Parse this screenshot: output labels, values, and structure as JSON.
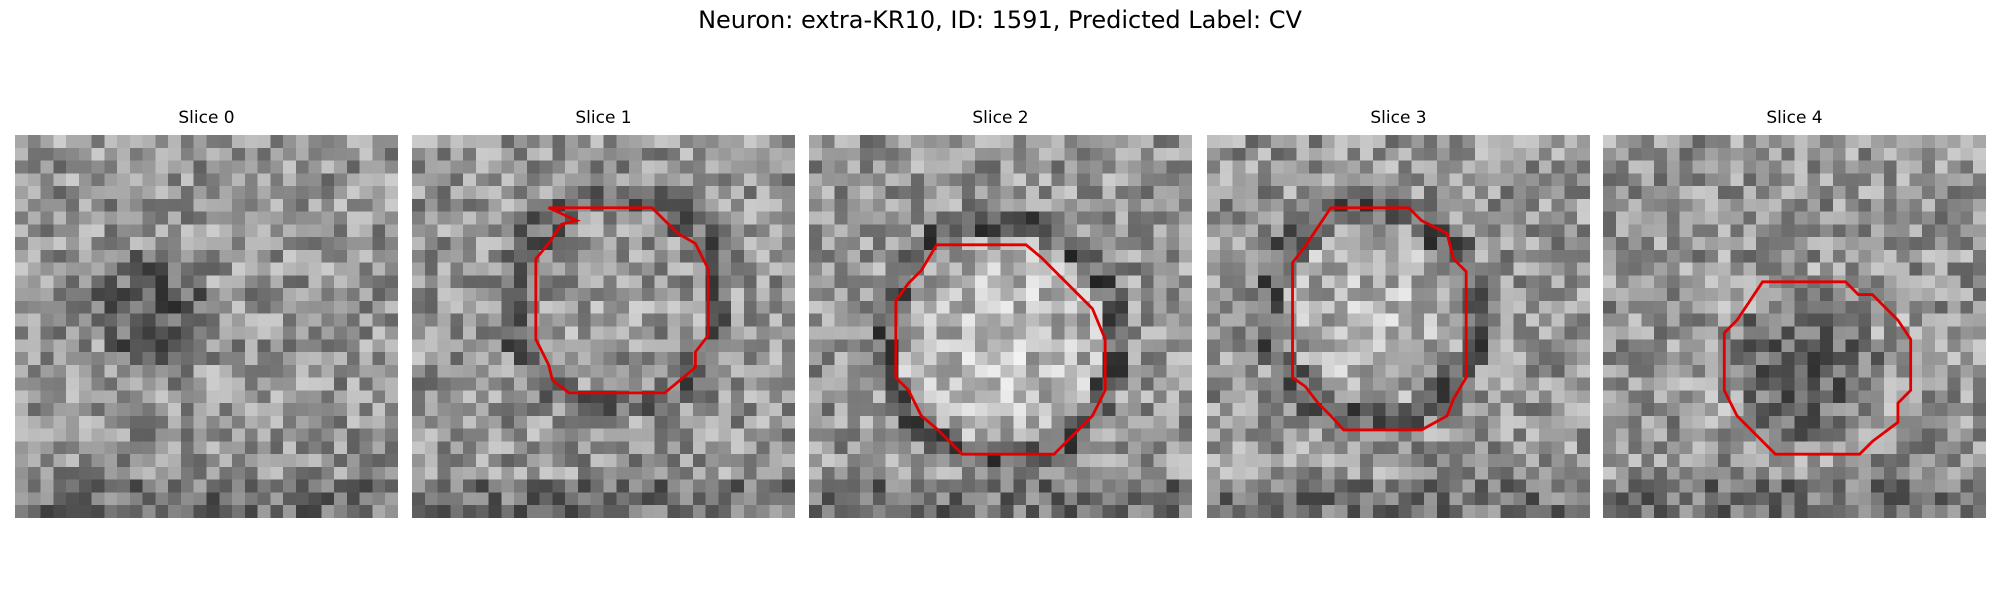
{
  "title": "Neuron: extra-KR10, ID: 1591, Predicted Label: CV",
  "panels": [
    {
      "title": "Slice 0"
    },
    {
      "title": "Slice 1"
    },
    {
      "title": "Slice 2"
    },
    {
      "title": "Slice 3"
    },
    {
      "title": "Slice 4"
    }
  ]
}
